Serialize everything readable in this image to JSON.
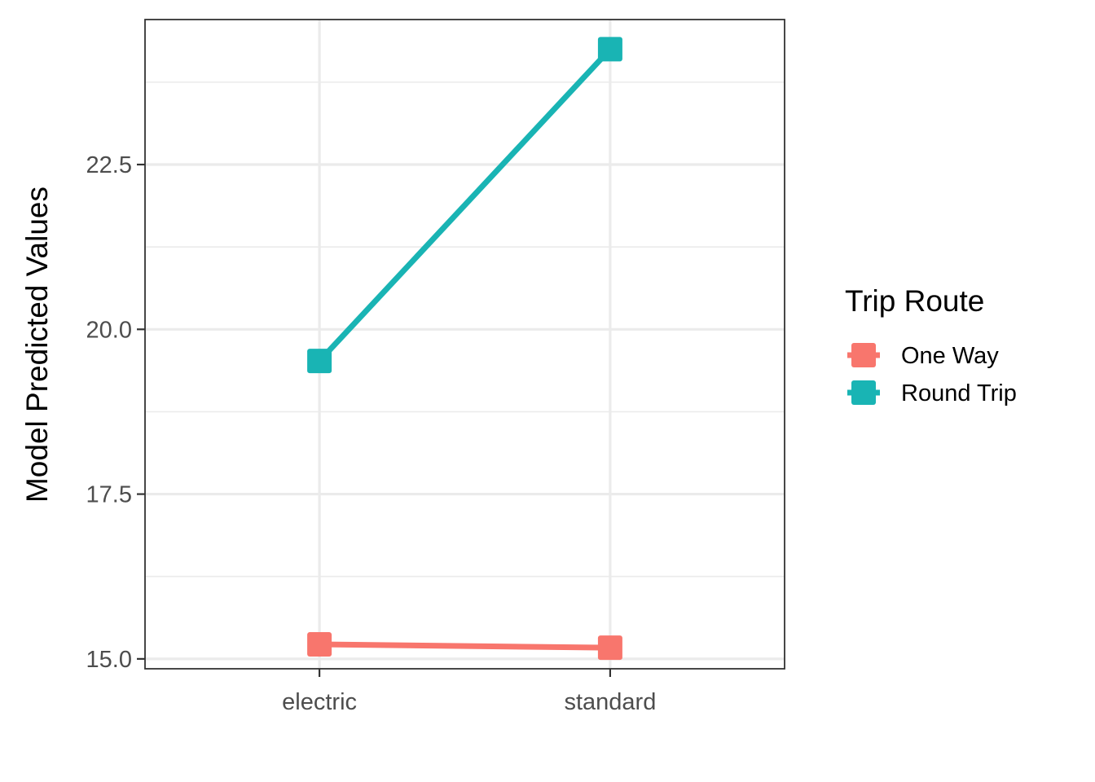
{
  "chart_data": {
    "type": "line",
    "categories": [
      "electric",
      "standard"
    ],
    "series": [
      {
        "name": "One Way",
        "color": "#F8766D",
        "values": [
          15.22,
          15.17
        ]
      },
      {
        "name": "Round Trip",
        "color": "#19B4B4",
        "values": [
          19.52,
          24.25
        ]
      }
    ],
    "ylabel": "Model Predicted Values",
    "xlabel": "",
    "ylim": [
      14.85,
      24.7
    ],
    "yticks": [
      15.0,
      17.5,
      20.0,
      22.5
    ],
    "yticks_minor": [
      16.25,
      18.75,
      21.25,
      23.75
    ],
    "legend": {
      "title": "Trip Route",
      "position": "right"
    },
    "grid": true,
    "marker": "square"
  }
}
